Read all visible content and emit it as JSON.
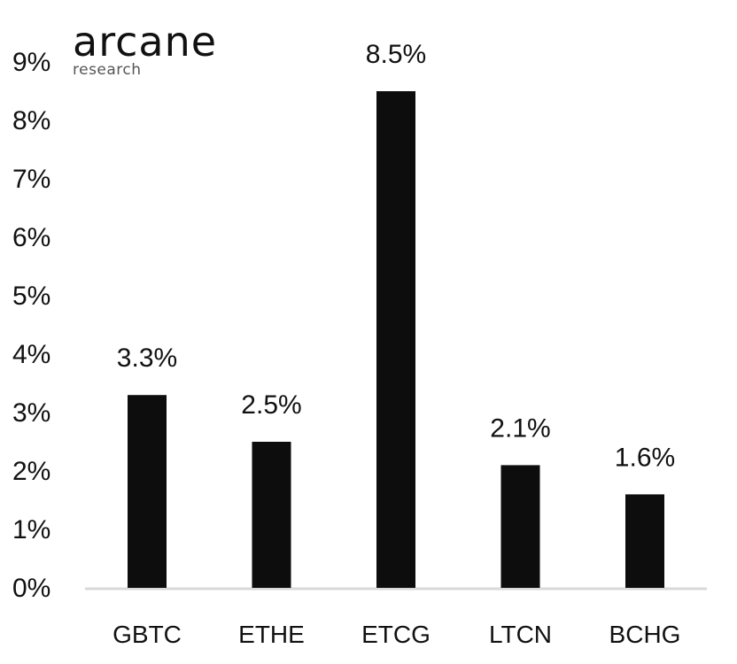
{
  "logo": {
    "name": "arcane",
    "sub": "research"
  },
  "chart_data": {
    "type": "bar",
    "title": "",
    "xlabel": "",
    "ylabel": "",
    "categories": [
      "GBTC",
      "ETHE",
      "ETCG",
      "LTCN",
      "BCHG"
    ],
    "values": [
      3.3,
      2.5,
      8.5,
      2.1,
      1.6
    ],
    "value_labels": [
      "3.3%",
      "2.5%",
      "8.5%",
      "2.1%",
      "1.6%"
    ],
    "ylim": [
      0,
      9
    ],
    "y_ticks": [
      "0%",
      "1%",
      "2%",
      "3%",
      "4%",
      "5%",
      "6%",
      "7%",
      "8%",
      "9%"
    ],
    "grid": false,
    "bar_color": "#0d0d0d",
    "axis_color": "#d9d9d9"
  }
}
